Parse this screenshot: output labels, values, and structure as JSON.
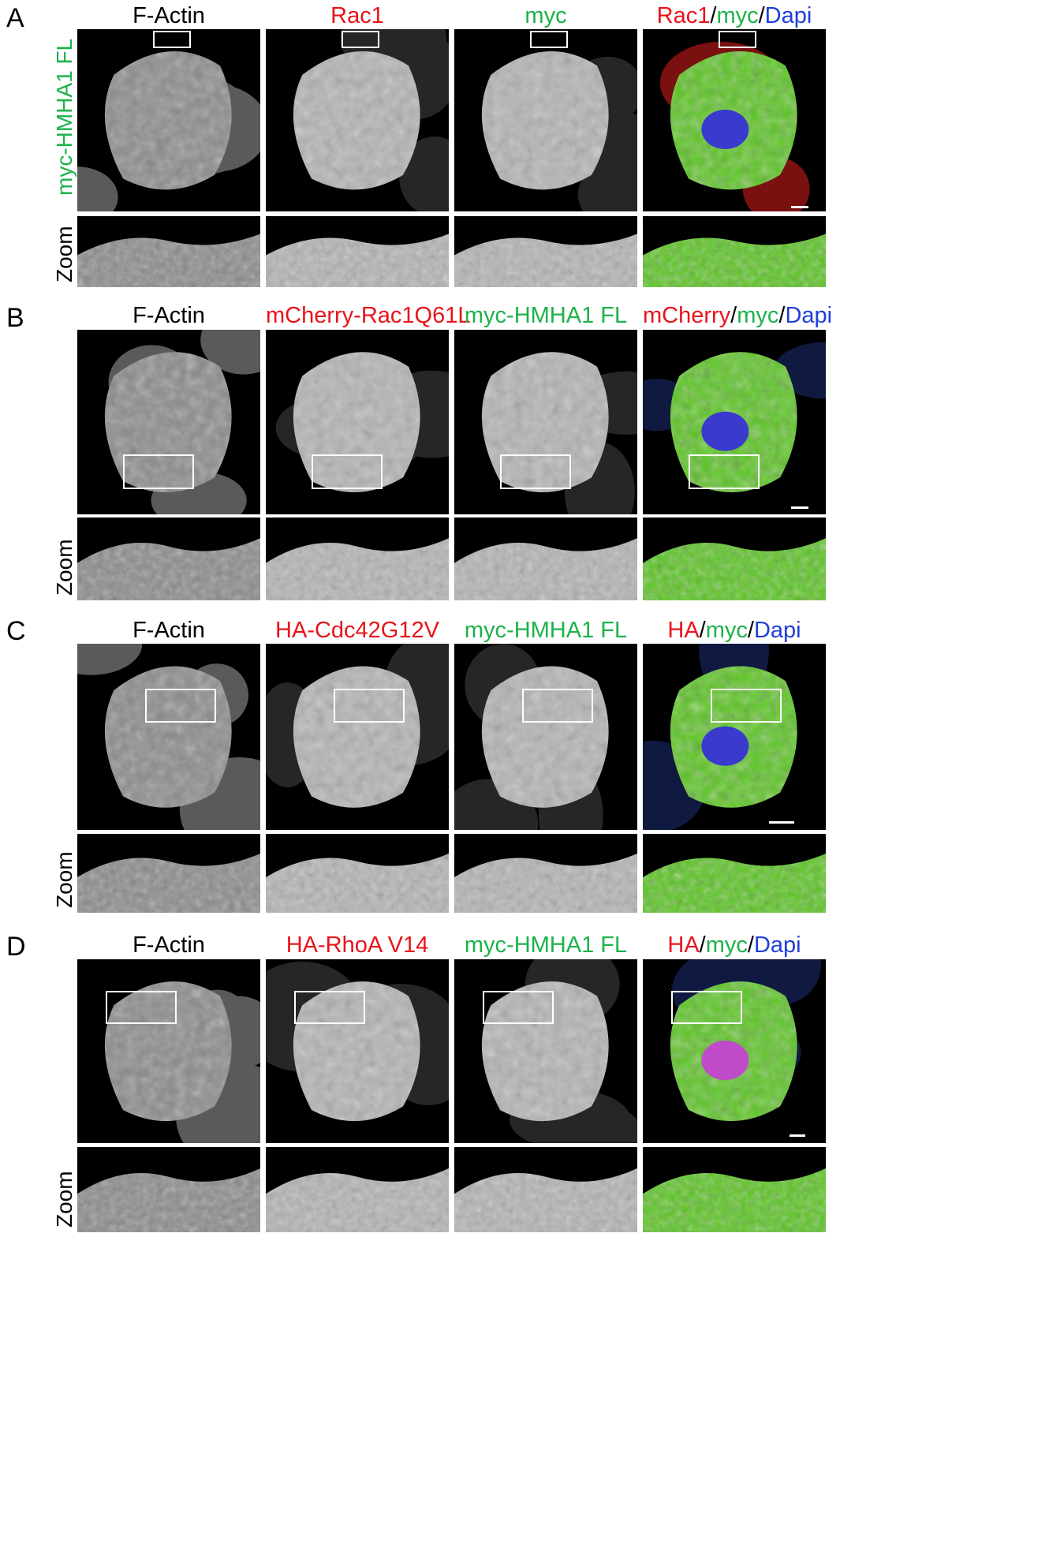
{
  "colors": {
    "red": "#e8141b",
    "green": "#1cb34a",
    "blue": "#1f3fd8",
    "black": "#000000",
    "white": "#ffffff"
  },
  "panels": [
    {
      "letter": "A",
      "row_label": "myc-HMHA1 FL",
      "zoom_label": "Zoom",
      "columns": [
        {
          "title": [
            {
              "text": "F-Actin",
              "color": "black"
            }
          ]
        },
        {
          "title": [
            {
              "text": "Rac1",
              "color": "red"
            }
          ]
        },
        {
          "title": [
            {
              "text": "myc",
              "color": "green"
            }
          ]
        },
        {
          "title": [
            {
              "text": "Rac1",
              "color": "red"
            },
            {
              "text": "/",
              "color": "black"
            },
            {
              "text": "myc",
              "color": "green"
            },
            {
              "text": "/",
              "color": "black"
            },
            {
              "text": "Dapi",
              "color": "blue"
            }
          ]
        }
      ]
    },
    {
      "letter": "B",
      "zoom_label": "Zoom",
      "columns": [
        {
          "title": [
            {
              "text": "F-Actin",
              "color": "black"
            }
          ]
        },
        {
          "title": [
            {
              "text": "mCherry-Rac1Q61L",
              "color": "red"
            }
          ]
        },
        {
          "title": [
            {
              "text": "myc-HMHA1 FL",
              "color": "green"
            }
          ]
        },
        {
          "title": [
            {
              "text": "mCherry",
              "color": "red"
            },
            {
              "text": "/",
              "color": "black"
            },
            {
              "text": "myc",
              "color": "green"
            },
            {
              "text": "/",
              "color": "black"
            },
            {
              "text": "Dapi",
              "color": "blue"
            }
          ]
        }
      ]
    },
    {
      "letter": "C",
      "zoom_label": "Zoom",
      "columns": [
        {
          "title": [
            {
              "text": "F-Actin",
              "color": "black"
            }
          ]
        },
        {
          "title": [
            {
              "text": "HA-Cdc42G12V",
              "color": "red"
            }
          ]
        },
        {
          "title": [
            {
              "text": "myc-HMHA1 FL",
              "color": "green"
            }
          ]
        },
        {
          "title": [
            {
              "text": "HA",
              "color": "red"
            },
            {
              "text": "/",
              "color": "black"
            },
            {
              "text": "myc",
              "color": "green"
            },
            {
              "text": "/",
              "color": "black"
            },
            {
              "text": "Dapi",
              "color": "blue"
            }
          ]
        }
      ]
    },
    {
      "letter": "D",
      "zoom_label": "Zoom",
      "columns": [
        {
          "title": [
            {
              "text": "F-Actin",
              "color": "black"
            }
          ]
        },
        {
          "title": [
            {
              "text": "HA-RhoA V14",
              "color": "red"
            }
          ]
        },
        {
          "title": [
            {
              "text": "myc-HMHA1 FL",
              "color": "green"
            }
          ]
        },
        {
          "title": [
            {
              "text": "HA",
              "color": "red"
            },
            {
              "text": "/",
              "color": "black"
            },
            {
              "text": "myc",
              "color": "green"
            },
            {
              "text": "/",
              "color": "black"
            },
            {
              "text": "Dapi",
              "color": "blue"
            }
          ]
        }
      ]
    }
  ]
}
